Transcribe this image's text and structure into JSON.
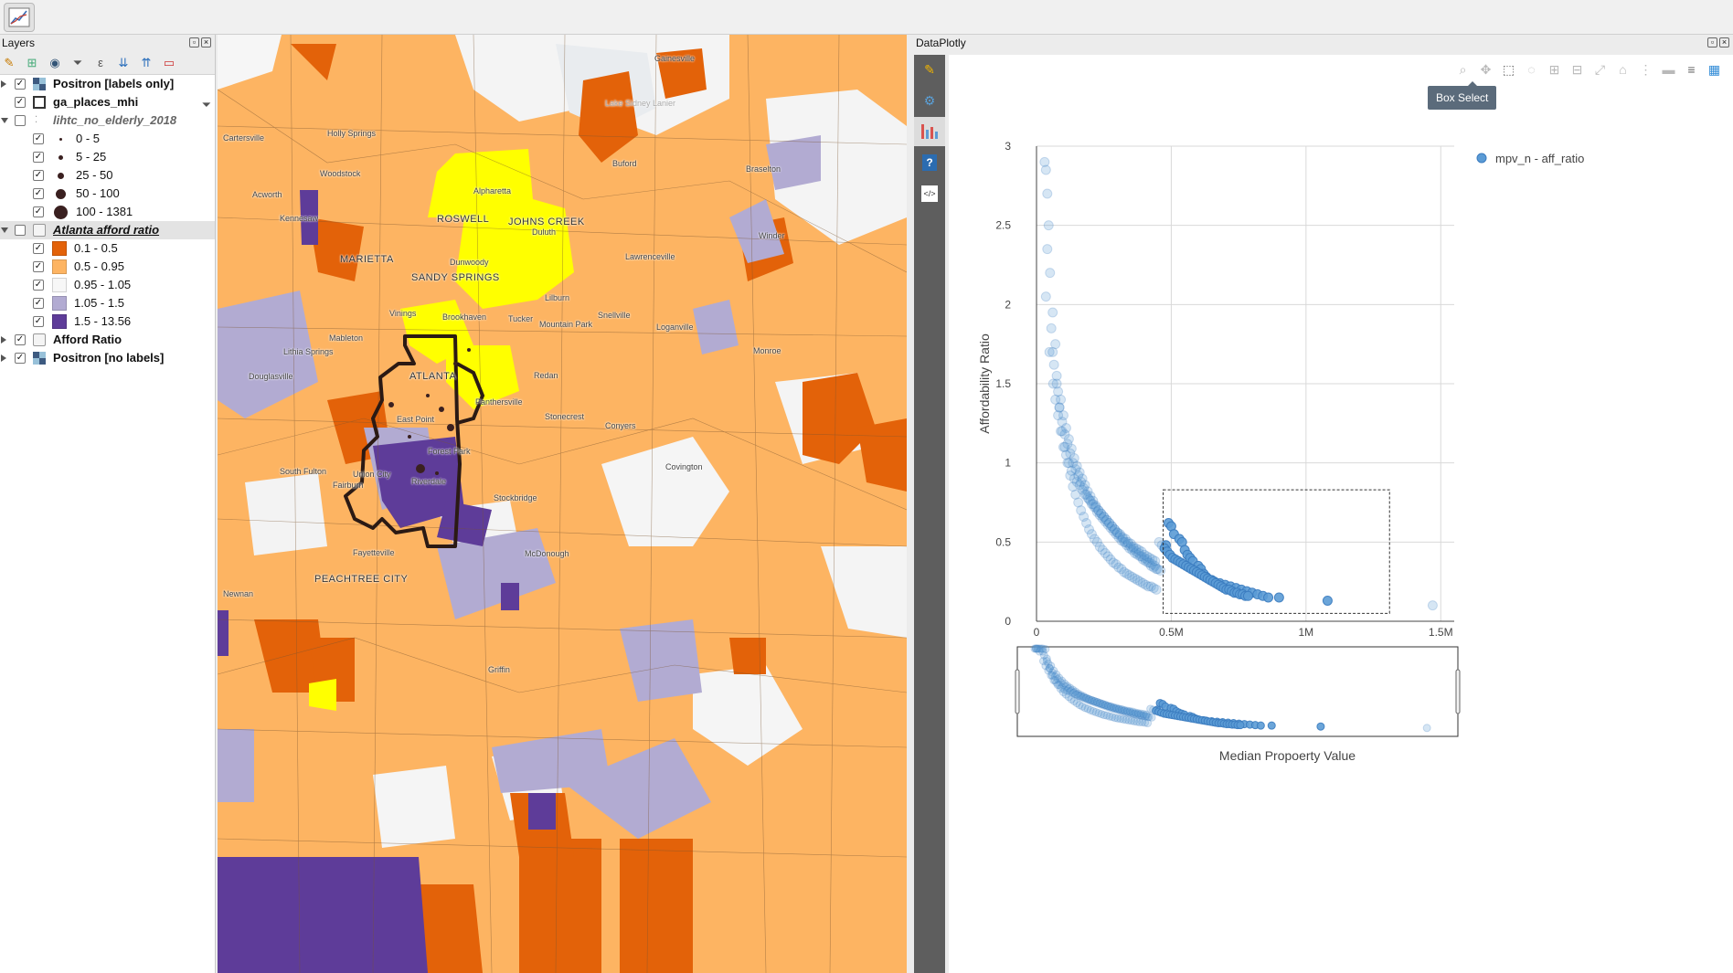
{
  "layers": {
    "title": "Layers",
    "items": [
      {
        "label": "Positron [labels only]"
      },
      {
        "label": "ga_places_mhi"
      },
      {
        "label": "lihtc_no_elderly_2018"
      },
      {
        "label": "0 - 5"
      },
      {
        "label": "5 - 25"
      },
      {
        "label": "25 - 50"
      },
      {
        "label": "50 - 100"
      },
      {
        "label": "100 - 1381"
      },
      {
        "label": "Atlanta afford ratio"
      },
      {
        "label": "0.1 - 0.5",
        "color": "#e36209"
      },
      {
        "label": "0.5 - 0.95",
        "color": "#fdb462"
      },
      {
        "label": "0.95 - 1.05",
        "color": "#f7f7f7"
      },
      {
        "label": "1.05 - 1.5",
        "color": "#b2abd2"
      },
      {
        "label": "1.5 - 13.56",
        "color": "#5e3c99"
      },
      {
        "label": "Afford Ratio"
      },
      {
        "label": "Positron [no labels]"
      }
    ]
  },
  "map": {
    "labels": [
      "Gainesville",
      "Lake Sidney Lanier",
      "Cartersville",
      "Holly Springs",
      "Buford",
      "Woodstock",
      "Braselton",
      "Acworth",
      "Alpharetta",
      "Kennesaw",
      "ROSWELL",
      "JOHNS CREEK",
      "Duluth",
      "Winder",
      "MARIETTA",
      "Dunwoody",
      "Lawrenceville",
      "SANDY SPRINGS",
      "Lilburn",
      "Vinings",
      "Brookhaven",
      "Tucker",
      "Snellville",
      "Mountain Park",
      "Loganville",
      "Mableton",
      "Lithia Springs",
      "Monroe",
      "ATLANTA",
      "Redan",
      "Douglasville",
      "Panthersville",
      "Stonecrest",
      "Conyers",
      "East Point",
      "Forest Park",
      "Covington",
      "South Fulton",
      "Union City",
      "Fairburn",
      "Riverdale",
      "Stockbridge",
      "Fayetteville",
      "McDonough",
      "PEACHTREE CITY",
      "Newnan",
      "Griffin"
    ]
  },
  "dataplotly": {
    "title": "DataPlotly",
    "tooltip": "Box Select",
    "colors": {
      "marker": "#5b9bd5",
      "selection_box": "#333333"
    }
  },
  "chart_data": {
    "type": "scatter",
    "series": [
      {
        "name": "mpv_n - aff_ratio"
      }
    ],
    "xlabel": "Median Propoerty Value",
    "ylabel": "Affordability Ratio",
    "xlim": [
      0,
      1550000
    ],
    "ylim": [
      0,
      3
    ],
    "x_ticks": [
      "0",
      "0.5M",
      "1M",
      "1.5M"
    ],
    "y_ticks": [
      "0",
      "0.5",
      "1",
      "1.5",
      "2",
      "2.5",
      "3"
    ],
    "legend_position": "top-right",
    "grid": true,
    "selection_box": {
      "x": [
        470000,
        1310000
      ],
      "y": [
        0.05,
        0.83
      ]
    },
    "points": {
      "x": [
        30000,
        35000,
        40000,
        45000,
        40000,
        50000,
        35000,
        60000,
        55000,
        70000,
        48000,
        65000,
        75000,
        62000,
        80000,
        90000,
        85000,
        100000,
        95000,
        110000,
        105000,
        120000,
        115000,
        130000,
        125000,
        140000,
        135000,
        150000,
        145000,
        160000,
        155000,
        170000,
        165000,
        180000,
        175000,
        190000,
        185000,
        200000,
        195000,
        210000,
        205000,
        220000,
        215000,
        230000,
        225000,
        240000,
        235000,
        250000,
        245000,
        260000,
        255000,
        270000,
        265000,
        280000,
        275000,
        290000,
        285000,
        300000,
        295000,
        310000,
        305000,
        320000,
        315000,
        330000,
        325000,
        340000,
        335000,
        350000,
        345000,
        360000,
        355000,
        370000,
        365000,
        380000,
        375000,
        390000,
        385000,
        400000,
        395000,
        410000,
        405000,
        420000,
        415000,
        430000,
        425000,
        440000,
        435000,
        450000,
        445000,
        460000,
        480000,
        490000,
        500000,
        510000,
        530000,
        540000,
        550000,
        560000,
        570000,
        580000,
        600000,
        610000,
        620000,
        630000,
        650000,
        660000,
        680000,
        700000,
        720000,
        740000,
        760000,
        780000,
        800000,
        820000,
        840000,
        860000,
        900000,
        1080000,
        1470000,
        70000,
        80000,
        90000,
        100000,
        110000,
        120000,
        130000,
        140000,
        150000,
        160000,
        170000,
        180000,
        190000,
        200000,
        210000,
        220000,
        230000,
        240000,
        250000,
        260000,
        270000,
        280000,
        290000,
        300000,
        310000,
        320000,
        330000,
        340000,
        350000,
        360000,
        370000,
        380000,
        390000,
        400000,
        410000,
        420000,
        430000,
        440000,
        60000,
        75000,
        85000,
        95000,
        105000,
        115000,
        125000,
        135000,
        145000,
        155000,
        165000,
        175000,
        185000,
        195000,
        205000,
        215000,
        225000,
        235000,
        245000,
        255000,
        265000,
        275000,
        285000,
        295000,
        305000,
        315000,
        325000,
        335000,
        345000,
        355000,
        365000,
        375000,
        385000,
        395000,
        405000,
        415000,
        425000,
        435000,
        445000,
        455000,
        465000,
        475000,
        485000,
        495000,
        505000,
        515000,
        525000,
        535000,
        545000,
        555000,
        565000,
        575000,
        585000,
        595000,
        605000,
        615000,
        625000,
        635000,
        645000,
        655000,
        665000,
        675000,
        685000,
        695000,
        705000,
        715000,
        725000,
        735000,
        745000,
        755000,
        765000,
        775000,
        785000
      ],
      "y": [
        2.9,
        2.85,
        2.7,
        2.5,
        2.35,
        2.2,
        2.05,
        1.95,
        1.85,
        1.75,
        1.7,
        1.62,
        1.55,
        1.5,
        1.45,
        1.4,
        1.35,
        1.3,
        1.26,
        1.22,
        1.18,
        1.15,
        1.12,
        1.09,
        1.06,
        1.03,
        1.0,
        0.98,
        0.96,
        0.94,
        0.92,
        0.9,
        0.88,
        0.86,
        0.84,
        0.82,
        0.8,
        0.79,
        0.77,
        0.76,
        0.74,
        0.73,
        0.72,
        0.7,
        0.69,
        0.68,
        0.67,
        0.66,
        0.65,
        0.64,
        0.63,
        0.62,
        0.61,
        0.6,
        0.59,
        0.58,
        0.57,
        0.56,
        0.55,
        0.54,
        0.53,
        0.52,
        0.51,
        0.5,
        0.5,
        0.49,
        0.48,
        0.47,
        0.46,
        0.46,
        0.45,
        0.44,
        0.43,
        0.43,
        0.42,
        0.41,
        0.41,
        0.4,
        0.39,
        0.39,
        0.38,
        0.37,
        0.37,
        0.36,
        0.35,
        0.35,
        0.34,
        0.33,
        0.33,
        0.32,
        0.48,
        0.62,
        0.6,
        0.55,
        0.52,
        0.5,
        0.45,
        0.42,
        0.4,
        0.38,
        0.35,
        0.33,
        0.3,
        0.28,
        0.26,
        0.25,
        0.24,
        0.23,
        0.22,
        0.21,
        0.2,
        0.19,
        0.18,
        0.17,
        0.16,
        0.15,
        0.15,
        0.13,
        0.1,
        1.4,
        1.3,
        1.2,
        1.1,
        1.05,
        1.0,
        0.95,
        0.9,
        0.88,
        0.86,
        0.83,
        0.8,
        0.78,
        0.76,
        0.74,
        0.72,
        0.7,
        0.68,
        0.66,
        0.64,
        0.62,
        0.6,
        0.58,
        0.56,
        0.55,
        0.53,
        0.52,
        0.5,
        0.49,
        0.47,
        0.46,
        0.45,
        0.44,
        0.42,
        0.41,
        0.4,
        0.39,
        0.38,
        1.7,
        1.5,
        1.35,
        1.2,
        1.1,
        1.0,
        0.92,
        0.85,
        0.8,
        0.75,
        0.7,
        0.66,
        0.62,
        0.58,
        0.55,
        0.52,
        0.5,
        0.47,
        0.45,
        0.43,
        0.41,
        0.39,
        0.37,
        0.36,
        0.34,
        0.33,
        0.31,
        0.3,
        0.29,
        0.28,
        0.27,
        0.26,
        0.25,
        0.24,
        0.23,
        0.22,
        0.22,
        0.21,
        0.2,
        0.5,
        0.48,
        0.46,
        0.44,
        0.42,
        0.4,
        0.39,
        0.38,
        0.37,
        0.36,
        0.35,
        0.34,
        0.33,
        0.32,
        0.31,
        0.3,
        0.29,
        0.28,
        0.27,
        0.26,
        0.25,
        0.24,
        0.23,
        0.22,
        0.21,
        0.2,
        0.2,
        0.19,
        0.18,
        0.18,
        0.17,
        0.17,
        0.16,
        0.16
      ]
    }
  }
}
